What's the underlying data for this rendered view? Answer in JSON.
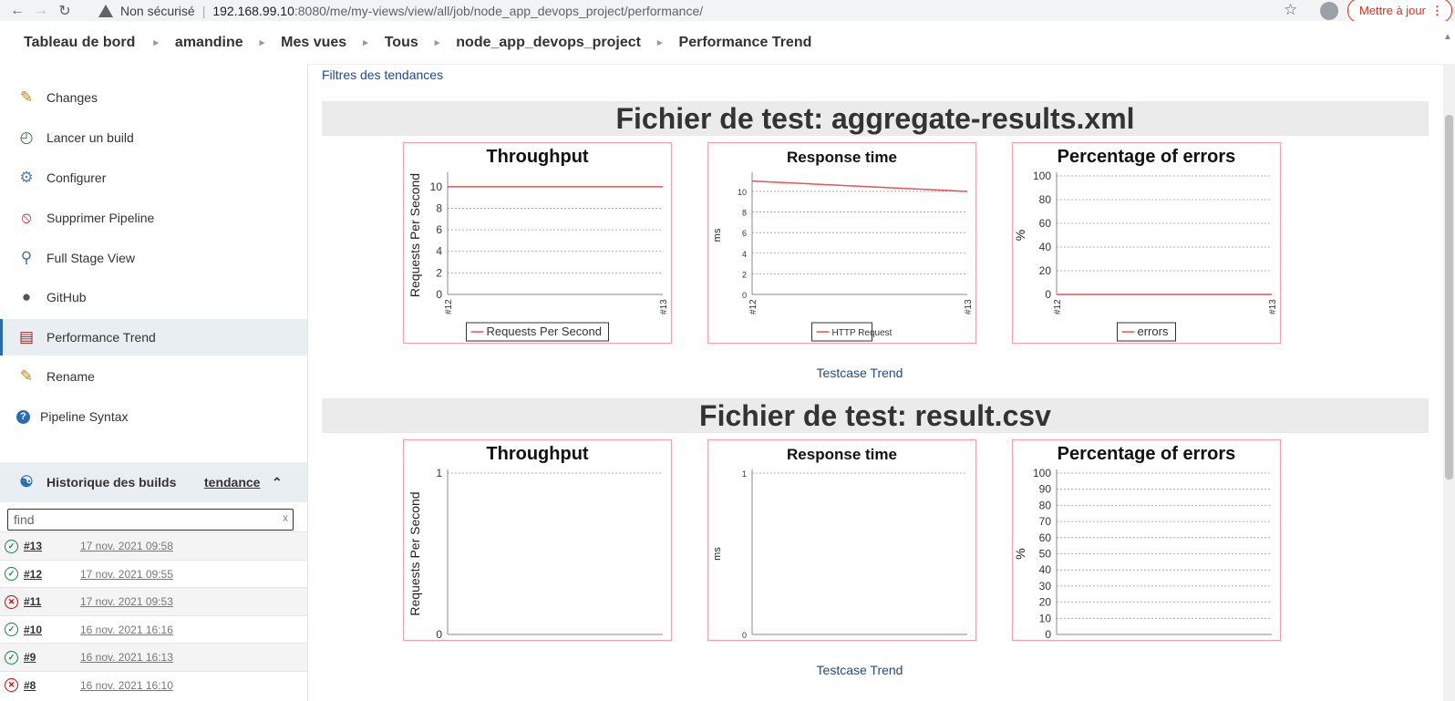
{
  "browser": {
    "security_label": "Non sécurisé",
    "url_host": "192.168.99.10",
    "url_path": ":8080/me/my-views/view/all/job/node_app_devops_project/performance/",
    "update_label": "Mettre à jour"
  },
  "breadcrumb": [
    "Tableau de bord",
    "amandine",
    "Mes vues",
    "Tous",
    "node_app_devops_project",
    "Performance Trend"
  ],
  "sidebar": {
    "items": [
      {
        "label": "Changes",
        "icon": "notepad-icon"
      },
      {
        "label": "Lancer un build",
        "icon": "build-clock-icon"
      },
      {
        "label": "Configurer",
        "icon": "gear-icon"
      },
      {
        "label": "Supprimer Pipeline",
        "icon": "no-entry-icon"
      },
      {
        "label": "Full Stage View",
        "icon": "magnifier-icon"
      },
      {
        "label": "GitHub",
        "icon": "github-icon"
      },
      {
        "label": "Performance Trend",
        "icon": "report-icon"
      },
      {
        "label": "Rename",
        "icon": "notepad-icon"
      },
      {
        "label": "Pipeline Syntax",
        "icon": "help-icon"
      }
    ],
    "history_title": "Historique des builds",
    "history_trend": "tendance",
    "find_placeholder": "find",
    "builds": [
      {
        "num": "#13",
        "date": "17 nov. 2021 09:58",
        "status": "success"
      },
      {
        "num": "#12",
        "date": "17 nov. 2021 09:55",
        "status": "success"
      },
      {
        "num": "#11",
        "date": "17 nov. 2021 09:53",
        "status": "failed"
      },
      {
        "num": "#10",
        "date": "16 nov. 2021 16:16",
        "status": "success"
      },
      {
        "num": "#9",
        "date": "16 nov. 2021 16:13",
        "status": "success"
      },
      {
        "num": "#8",
        "date": "16 nov. 2021 16:10",
        "status": "failed"
      }
    ]
  },
  "main": {
    "filters_link": "Filtres des tendances",
    "testcase_link": "Testcase Trend",
    "sections": [
      {
        "title": "Fichier de test: aggregate-results.xml"
      },
      {
        "title": "Fichier de test: result.csv"
      }
    ]
  },
  "colors": {
    "line": "#e05555",
    "link": "#204a87",
    "active_bg": "#e9eef2"
  },
  "chart_data": [
    {
      "type": "line",
      "title": "Throughput",
      "ylabel": "Requests Per Second",
      "categories": [
        "#12",
        "#13"
      ],
      "series": [
        {
          "name": "Requests Per Second",
          "values": [
            10,
            10
          ]
        }
      ],
      "ylim": [
        0,
        11
      ],
      "yticks": [
        0,
        2,
        4,
        6,
        8,
        10
      ],
      "legend": "bottom",
      "grid": true
    },
    {
      "type": "line",
      "title": "Response time",
      "ylabel": "ms",
      "categories": [
        "#12",
        "#13"
      ],
      "series": [
        {
          "name": "HTTP Request",
          "values": [
            11,
            10
          ]
        }
      ],
      "ylim": [
        0,
        11.5
      ],
      "yticks": [
        0,
        2,
        4,
        6,
        8,
        10
      ],
      "legend": "bottom",
      "grid": true
    },
    {
      "type": "line",
      "title": "Percentage of errors",
      "ylabel": "%",
      "categories": [
        "#12",
        "#13"
      ],
      "series": [
        {
          "name": "errors",
          "values": [
            0,
            0
          ]
        }
      ],
      "ylim": [
        0,
        100
      ],
      "yticks": [
        0,
        20,
        40,
        60,
        80,
        100
      ],
      "legend": "bottom",
      "grid": true
    },
    {
      "type": "line",
      "title": "Throughput",
      "ylabel": "Requests Per Second",
      "categories": [],
      "series": [],
      "ylim": [
        0,
        1
      ],
      "yticks": [
        0,
        1
      ],
      "grid": true
    },
    {
      "type": "line",
      "title": "Response time",
      "ylabel": "ms",
      "categories": [],
      "series": [],
      "ylim": [
        0,
        1
      ],
      "yticks": [
        0,
        1
      ],
      "grid": true
    },
    {
      "type": "line",
      "title": "Percentage of errors",
      "ylabel": "%",
      "categories": [],
      "series": [],
      "ylim": [
        0,
        100
      ],
      "yticks": [
        0,
        10,
        20,
        30,
        40,
        50,
        60,
        70,
        80,
        90,
        100
      ],
      "grid": true
    }
  ]
}
